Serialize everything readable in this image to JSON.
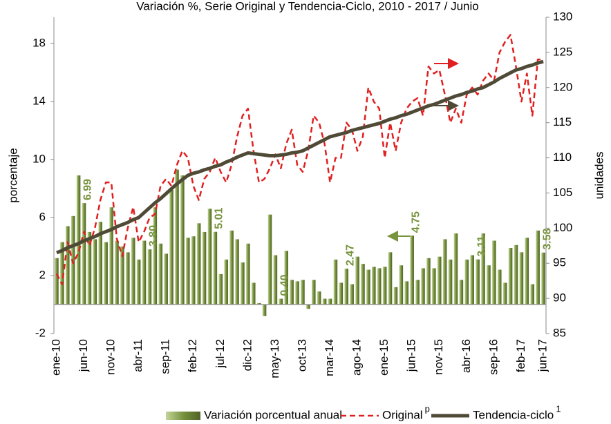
{
  "chart_data": {
    "type": "bar",
    "title": "Variación %, Serie Original y Tendencia-Ciclo, 2010 - 2017 / Junio",
    "ylabel": "porcentaje",
    "y2label": "unidades",
    "categories": [
      "ene-10",
      null,
      null,
      null,
      null,
      "jun-10",
      null,
      null,
      null,
      null,
      "nov-10",
      null,
      null,
      null,
      null,
      "abr-11",
      null,
      null,
      null,
      null,
      "sep-11",
      null,
      null,
      null,
      null,
      "feb-12",
      null,
      null,
      null,
      null,
      "jul-12",
      null,
      null,
      null,
      null,
      "dic-12",
      null,
      null,
      null,
      null,
      "may-13",
      null,
      null,
      null,
      null,
      "oct-13",
      null,
      null,
      null,
      null,
      "mar-14",
      null,
      null,
      null,
      null,
      "ago-14",
      null,
      null,
      null,
      null,
      "ene-15",
      null,
      null,
      null,
      null,
      "jun-15",
      null,
      null,
      null,
      null,
      "nov-15",
      null,
      null,
      null,
      null,
      "abr-16",
      null,
      null,
      null,
      null,
      "sep-16",
      null,
      null,
      null,
      null,
      "feb-17",
      null,
      null,
      null,
      "jun-17"
    ],
    "ylim": [
      -2,
      19.8
    ],
    "yticks": [
      -2,
      2,
      6,
      10,
      14,
      18
    ],
    "y2lim": [
      85,
      130
    ],
    "y2ticks": [
      85,
      90,
      95,
      100,
      105,
      110,
      115,
      120,
      125,
      130
    ],
    "series": [
      {
        "name": "Variación porcentual anual",
        "type": "bar",
        "color": "#77933c",
        "values": [
          3.2,
          4.3,
          5.4,
          6.1,
          8.9,
          6.99,
          5.0,
          4.5,
          5.7,
          4.3,
          6.7,
          4.4,
          4.0,
          3.6,
          4.6,
          3.1,
          4.4,
          3.8,
          6.7,
          4.2,
          3.5,
          7.9,
          9.3,
          8.9,
          4.6,
          4.7,
          5.6,
          5.0,
          6.6,
          5.01,
          2.1,
          3.1,
          5.1,
          4.5,
          2.9,
          4.2,
          1.5,
          0.1,
          -0.8,
          6.2,
          3.4,
          0.4,
          3.7,
          1.7,
          1.6,
          1.7,
          -0.3,
          1.7,
          0.9,
          0.4,
          0.4,
          3.1,
          1.5,
          2.47,
          1.4,
          3.3,
          2.8,
          2.4,
          2.6,
          2.5,
          2.6,
          3.6,
          1.2,
          2.7,
          1.6,
          4.75,
          1.7,
          2.5,
          3.2,
          2.5,
          3.3,
          4.5,
          3.1,
          4.9,
          1.7,
          3.1,
          3.4,
          3.11,
          4.9,
          2.7,
          4.4,
          2.4,
          1.5,
          3.9,
          4.1,
          3.6,
          4.6,
          1.4,
          5.1,
          3.58
        ],
        "value_labels": [
          null,
          null,
          null,
          null,
          null,
          "6.99",
          null,
          null,
          null,
          null,
          null,
          null,
          null,
          null,
          null,
          null,
          null,
          "3.80",
          null,
          null,
          null,
          null,
          null,
          null,
          null,
          null,
          null,
          null,
          null,
          "5.01",
          null,
          null,
          null,
          null,
          null,
          null,
          null,
          null,
          null,
          null,
          null,
          "0.40",
          null,
          null,
          null,
          null,
          null,
          null,
          null,
          null,
          null,
          null,
          null,
          "2.47",
          null,
          null,
          null,
          null,
          null,
          null,
          null,
          null,
          null,
          null,
          null,
          "4.75",
          null,
          null,
          null,
          null,
          null,
          null,
          null,
          null,
          null,
          null,
          null,
          "3.11",
          null,
          null,
          null,
          null,
          null,
          null,
          null,
          null,
          null,
          null,
          null,
          "3.58"
        ]
      },
      {
        "name": "Original",
        "name_superscript": "p",
        "type": "line",
        "dashed": true,
        "axis": "y2",
        "color": "#e02020",
        "values": [
          93.5,
          92,
          98,
          95,
          96.5,
          99.5,
          97.5,
          100,
          104,
          106.5,
          106.5,
          98.5,
          96,
          100,
          103,
          98,
          99.5,
          101.5,
          102,
          106,
          107,
          106,
          109,
          111,
          110,
          106,
          104,
          107,
          108,
          110,
          108,
          106.5,
          109,
          113,
          116,
          117,
          111,
          106.5,
          107,
          108.5,
          110.5,
          108.5,
          112,
          114,
          109,
          108,
          111,
          116,
          115,
          112,
          106.5,
          110,
          110,
          115,
          114,
          111,
          113,
          120,
          118,
          117,
          110,
          115,
          111,
          115,
          117,
          118,
          118.5,
          116,
          123,
          122,
          122.5,
          119,
          115,
          117,
          115,
          119,
          120,
          119,
          121,
          122,
          121,
          125,
          126.5,
          127.5,
          123,
          118,
          122,
          116,
          124,
          124
        ]
      },
      {
        "name": "Tendencia-ciclo",
        "name_superscript": "1",
        "type": "line",
        "dashed": false,
        "axis": "y2",
        "color": "#4f4a36",
        "values": [
          96.5,
          96.8,
          97.2,
          97.5,
          97.8,
          98.2,
          98.5,
          98.8,
          99.2,
          99.5,
          99.8,
          100.2,
          100.5,
          100.8,
          101.2,
          101.5,
          102.2,
          102.9,
          103.6,
          104.2,
          104.9,
          105.6,
          106.3,
          106.9,
          107.5,
          107.8,
          108,
          108.3,
          108.5,
          108.8,
          109,
          109.4,
          109.7,
          110.1,
          110.4,
          110.7,
          110.6,
          110.5,
          110.4,
          110.3,
          110.3,
          110.4,
          110.5,
          110.7,
          110.8,
          111,
          111.4,
          111.8,
          112.2,
          112.6,
          113,
          113.2,
          113.4,
          113.6,
          113.9,
          114.1,
          114.3,
          114.5,
          114.7,
          114.9,
          115.2,
          115.5,
          115.7,
          116,
          116.2,
          116.5,
          116.8,
          117.1,
          117.4,
          117.6,
          117.9,
          118.2,
          118.5,
          118.8,
          119,
          119.3,
          119.5,
          119.8,
          120,
          120.4,
          120.8,
          121.3,
          121.7,
          122.1,
          122.5,
          122.7,
          123,
          123.2,
          123.5,
          123.7
        ]
      }
    ]
  }
}
